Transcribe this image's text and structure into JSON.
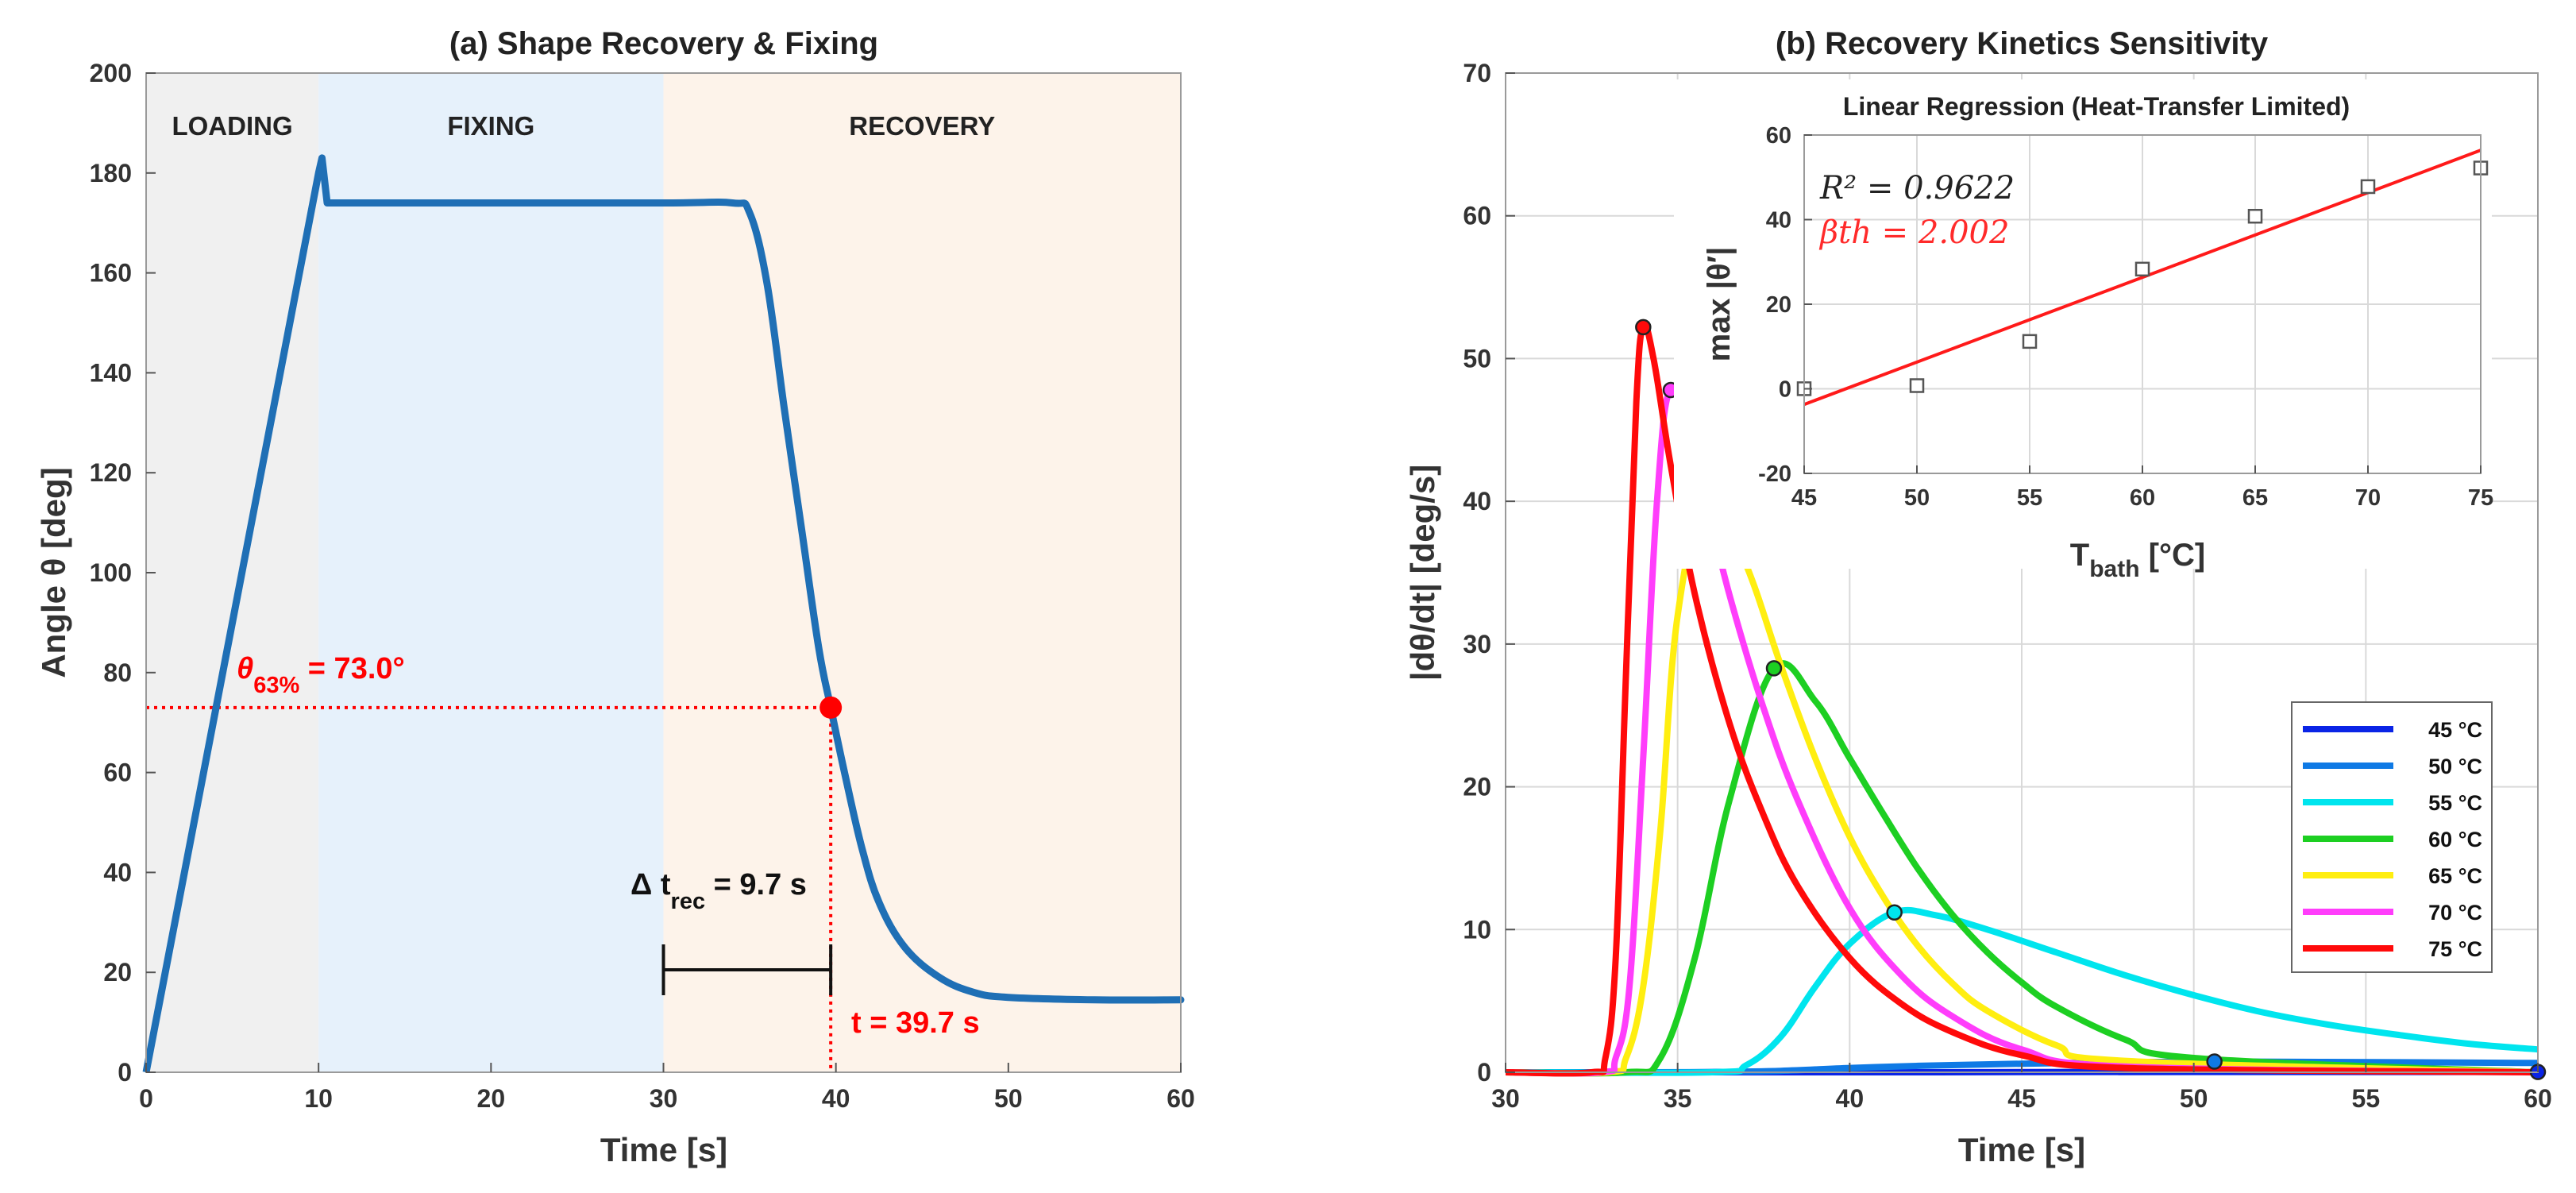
{
  "chart_data": [
    {
      "type": "line",
      "title": "(a) Shape Recovery & Fixing",
      "xlabel": "Time [s]",
      "ylabel": "Angle θ [deg]",
      "xlim": [
        0,
        60
      ],
      "ylim": [
        0,
        200
      ],
      "xticks": [
        0,
        10,
        20,
        30,
        40,
        50,
        60
      ],
      "yticks": [
        0,
        20,
        40,
        60,
        80,
        100,
        120,
        140,
        160,
        180,
        200
      ],
      "grid": false,
      "phases": [
        {
          "label": "LOADING",
          "x0": 0,
          "x1": 10,
          "color": "#f0f0f0"
        },
        {
          "label": "FIXING",
          "x0": 10,
          "x1": 30,
          "color": "#e6f1fb"
        },
        {
          "label": "RECOVERY",
          "x0": 30,
          "x1": 60,
          "color": "#fdf3ea"
        }
      ],
      "series": [
        {
          "color": "#1f6fb5",
          "x": [
            0,
            10,
            10.2,
            10.5,
            20,
            30,
            34,
            35,
            36,
            37,
            38,
            39,
            39.7,
            40.5,
            41.5,
            42.5,
            44,
            46,
            48,
            50,
            55,
            60
          ],
          "y": [
            0,
            180,
            183,
            174,
            174,
            174,
            174,
            172,
            158,
            133,
            109,
            85,
            73,
            60,
            45,
            34,
            25,
            19,
            16,
            15,
            14.5,
            14.5
          ]
        }
      ],
      "marker": {
        "x": 39.7,
        "y": 73.0,
        "color": "#ff0000"
      },
      "annotations": {
        "theta_symbol": "θ",
        "theta_sub": "63%",
        "theta_value": " = 73.0°",
        "t_label": "t = 39.7 s",
        "delta_prefix": "Δ t",
        "delta_sub": "rec",
        "delta_value": " = 9.7 s",
        "delta_from": 30,
        "delta_to": 39.7
      }
    },
    {
      "type": "line",
      "title": "(b) Recovery Kinetics Sensitivity",
      "xlabel": "Time [s]",
      "ylabel": "|dθ/dt| [deg/s]",
      "xlim": [
        30,
        60
      ],
      "ylim": [
        0,
        70
      ],
      "xticks": [
        30,
        35,
        40,
        45,
        50,
        55,
        60
      ],
      "yticks": [
        0,
        10,
        20,
        30,
        40,
        50,
        60,
        70
      ],
      "grid": true,
      "legend_position": "bottom-right",
      "series": [
        {
          "name": "45 °C",
          "color": "#0a24e6",
          "x": [
            30,
            32,
            34,
            36,
            38,
            40,
            42,
            45,
            50,
            55,
            60
          ],
          "y": [
            0,
            0,
            0,
            0,
            0,
            0,
            0,
            0.01,
            0.02,
            0.02,
            0.02
          ],
          "peak": [
            60,
            0.02
          ]
        },
        {
          "name": "50 °C",
          "color": "#0f7ae5",
          "x": [
            30,
            34,
            36,
            38,
            40,
            42,
            45,
            48,
            50.6,
            53,
            56,
            60
          ],
          "y": [
            0,
            0,
            0.02,
            0.1,
            0.3,
            0.45,
            0.6,
            0.7,
            0.75,
            0.73,
            0.7,
            0.65
          ],
          "peak": [
            50.6,
            0.75
          ]
        },
        {
          "name": "55 °C",
          "color": "#00e5ee",
          "x": [
            30,
            36,
            37,
            38,
            39,
            40,
            41.3,
            42.5,
            44,
            46,
            48,
            50,
            52,
            54,
            56,
            58,
            60
          ],
          "y": [
            0,
            0,
            0.5,
            2.5,
            6,
            9,
            11.2,
            11,
            10,
            8.4,
            6.8,
            5.4,
            4.2,
            3.3,
            2.6,
            2.0,
            1.6
          ],
          "peak": [
            41.3,
            11.2
          ]
        },
        {
          "name": "60 °C",
          "color": "#1dcf22",
          "x": [
            30,
            33.5,
            34.5,
            35.5,
            36.5,
            37.8,
            39,
            40,
            41,
            42,
            43,
            44,
            45,
            46,
            48,
            50,
            60
          ],
          "y": [
            0,
            0,
            1,
            8,
            19,
            28.3,
            26,
            22,
            18,
            14.2,
            11,
            8.4,
            6.3,
            4.6,
            2.3,
            1.0,
            0
          ],
          "peak": [
            37.8,
            28.3
          ]
        },
        {
          "name": "65 °C",
          "color": "#ffee10",
          "x": [
            30,
            33,
            33.5,
            34,
            34.5,
            35,
            35.9,
            37,
            38,
            39,
            40,
            41,
            42,
            43,
            44,
            46,
            48,
            60
          ],
          "y": [
            0,
            0,
            1,
            6,
            17,
            32,
            40.8,
            35.5,
            28.5,
            22,
            16.5,
            12.2,
            8.8,
            6.2,
            4.3,
            1.9,
            0.8,
            0
          ],
          "peak": [
            35.9,
            40.8
          ]
        },
        {
          "name": "70 °C",
          "color": "#ff3dfb",
          "x": [
            30,
            32.8,
            33.2,
            33.6,
            34,
            34.4,
            34.8,
            35.5,
            36.5,
            37.5,
            38.5,
            40,
            41.5,
            43,
            45,
            48,
            60
          ],
          "y": [
            0,
            0,
            1,
            6,
            22,
            40,
            47.8,
            43,
            33.5,
            25.5,
            19,
            11.5,
            6.8,
            3.9,
            1.6,
            0.4,
            0
          ],
          "peak": [
            34.8,
            47.8
          ]
        },
        {
          "name": "75 °C",
          "color": "#ff0a0a",
          "x": [
            30,
            32.5,
            32.9,
            33.2,
            33.5,
            33.8,
            34.0,
            34.3,
            34.8,
            35.5,
            36.5,
            37.5,
            38.5,
            40,
            41.5,
            43,
            45,
            48,
            60
          ],
          "y": [
            0,
            0,
            1,
            8,
            28,
            47,
            52.2,
            50,
            42.5,
            33.5,
            24.5,
            18,
            13,
            8,
            4.8,
            2.8,
            1.2,
            0.3,
            0
          ],
          "peak": [
            34.0,
            52.2
          ]
        }
      ],
      "inset": {
        "type": "scatter",
        "title": "Linear Regression (Heat-Transfer Limited)",
        "xlabel_main": "T",
        "xlabel_sub": "bath",
        "xlabel_rest": " [°C]",
        "ylabel": "max |θ′|",
        "xlim": [
          45,
          75
        ],
        "ylim": [
          -20,
          60
        ],
        "xticks": [
          45,
          50,
          55,
          60,
          65,
          70,
          75
        ],
        "yticks": [
          -20,
          0,
          20,
          40,
          60
        ],
        "grid": true,
        "points": {
          "x": [
            45,
            50,
            55,
            60,
            65,
            70,
            75
          ],
          "y": [
            0.02,
            0.75,
            11.2,
            28.3,
            40.8,
            47.8,
            52.2
          ]
        },
        "fit_line": {
          "x": [
            45,
            75
          ],
          "y": [
            -3.7,
            56.4
          ],
          "color": "#ff1a1a"
        },
        "r2_text": "R² = 0.9622",
        "beta_text": "βth = 2.002"
      }
    }
  ]
}
